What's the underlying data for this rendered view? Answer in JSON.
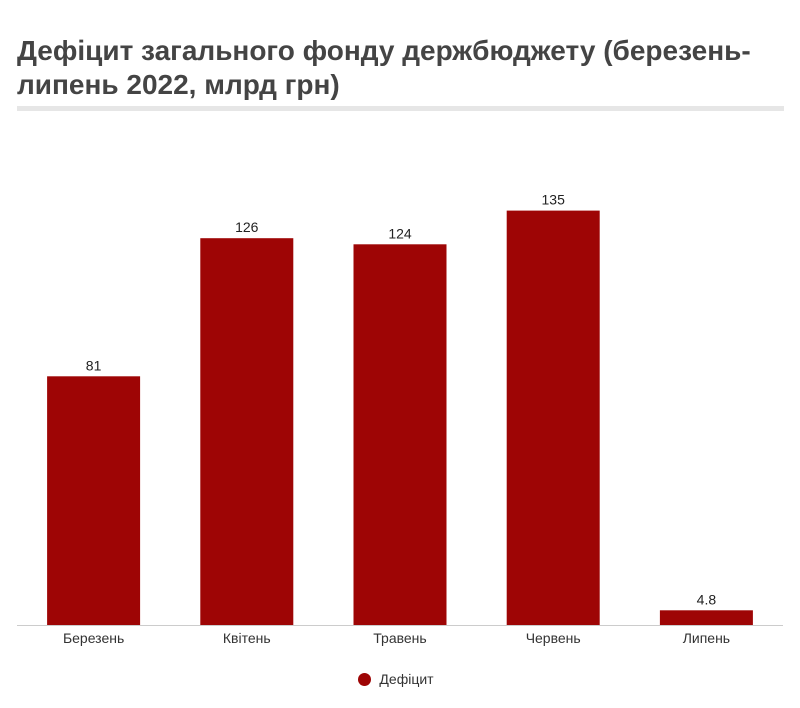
{
  "chart_data": {
    "type": "bar",
    "title": "Дефіцит загального фонду держбюджету (березень-липень 2022, млрд грн)",
    "categories": [
      "Березень",
      "Квітень",
      "Травень",
      "Червень",
      "Липень"
    ],
    "series": [
      {
        "name": "Дефіцит",
        "values": [
          81,
          126,
          124,
          135,
          4.8
        ],
        "data_labels": [
          "81",
          "126",
          "124",
          "135",
          "4.8"
        ],
        "color": "#9e0505"
      }
    ],
    "ylim": [
      0,
      150
    ],
    "grid": false,
    "legend": "bottom-center",
    "xlabel": "",
    "ylabel": ""
  }
}
